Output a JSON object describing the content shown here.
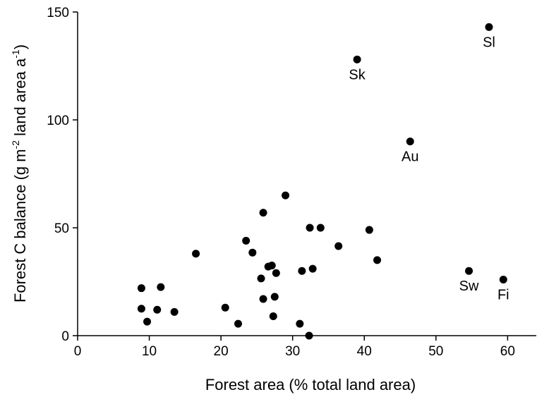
{
  "chart_data": {
    "type": "scatter",
    "xlabel": "Forest area (% total land area)",
    "ylabel_parts": [
      "Forest C balance (g m",
      "-2",
      " land area a",
      "-1",
      ")"
    ],
    "xlim": [
      0,
      64
    ],
    "ylim": [
      0,
      150
    ],
    "xticks": [
      0,
      10,
      20,
      30,
      40,
      50,
      60
    ],
    "yticks": [
      0,
      50,
      100,
      150
    ],
    "grid": false,
    "points": [
      {
        "x": 8.9,
        "y": 22,
        "label": ""
      },
      {
        "x": 8.9,
        "y": 12.5,
        "label": ""
      },
      {
        "x": 9.7,
        "y": 6.5,
        "label": ""
      },
      {
        "x": 11.1,
        "y": 12,
        "label": ""
      },
      {
        "x": 11.6,
        "y": 22.5,
        "label": ""
      },
      {
        "x": 13.5,
        "y": 11,
        "label": ""
      },
      {
        "x": 16.5,
        "y": 38,
        "label": ""
      },
      {
        "x": 20.6,
        "y": 13,
        "label": ""
      },
      {
        "x": 22.4,
        "y": 5.5,
        "label": ""
      },
      {
        "x": 23.5,
        "y": 44,
        "label": ""
      },
      {
        "x": 24.4,
        "y": 38.5,
        "label": ""
      },
      {
        "x": 25.6,
        "y": 26.5,
        "label": ""
      },
      {
        "x": 25.9,
        "y": 57,
        "label": ""
      },
      {
        "x": 25.9,
        "y": 17,
        "label": ""
      },
      {
        "x": 26.6,
        "y": 32,
        "label": ""
      },
      {
        "x": 27.1,
        "y": 32.5,
        "label": ""
      },
      {
        "x": 27.3,
        "y": 9,
        "label": ""
      },
      {
        "x": 27.5,
        "y": 18,
        "label": ""
      },
      {
        "x": 27.7,
        "y": 29,
        "label": ""
      },
      {
        "x": 29.0,
        "y": 65,
        "label": ""
      },
      {
        "x": 31.0,
        "y": 5.5,
        "label": ""
      },
      {
        "x": 31.3,
        "y": 30,
        "label": ""
      },
      {
        "x": 32.3,
        "y": 0,
        "label": ""
      },
      {
        "x": 32.4,
        "y": 50,
        "label": ""
      },
      {
        "x": 32.8,
        "y": 31,
        "label": ""
      },
      {
        "x": 33.9,
        "y": 50,
        "label": ""
      },
      {
        "x": 36.4,
        "y": 41.5,
        "label": ""
      },
      {
        "x": 39.0,
        "y": 128,
        "label": "Sk"
      },
      {
        "x": 40.7,
        "y": 49,
        "label": ""
      },
      {
        "x": 41.8,
        "y": 35,
        "label": ""
      },
      {
        "x": 46.4,
        "y": 90,
        "label": "Au"
      },
      {
        "x": 54.6,
        "y": 30,
        "label": "Sw"
      },
      {
        "x": 57.4,
        "y": 143,
        "label": "Sl"
      },
      {
        "x": 59.4,
        "y": 26,
        "label": "Fi"
      }
    ]
  }
}
